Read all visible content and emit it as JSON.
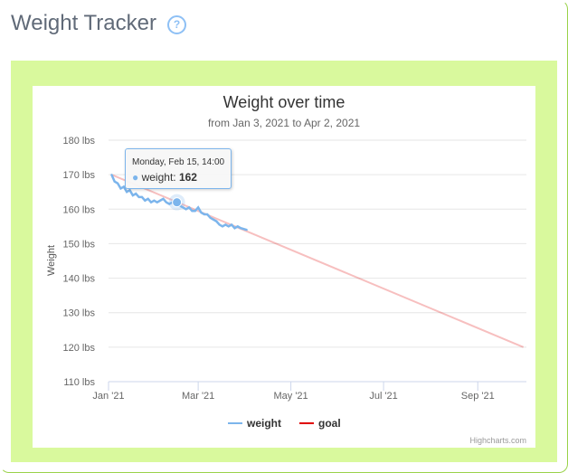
{
  "header": {
    "title": "Weight Tracker",
    "help_icon": "?"
  },
  "tooltip": {
    "date": "Monday, Feb 15, 14:00",
    "series": "weight",
    "value": "162"
  },
  "credits": "Highcharts.com",
  "chart_data": {
    "type": "line",
    "title": "Weight over time",
    "subtitle": "from Jan 3, 2021 to Apr 2, 2021",
    "ylabel": "Weight",
    "ylim": [
      110,
      180
    ],
    "yticks": [
      "110 lbs",
      "120 lbs",
      "130 lbs",
      "140 lbs",
      "150 lbs",
      "160 lbs",
      "170 lbs",
      "180 lbs"
    ],
    "xticks": [
      "Jan '21",
      "Mar '21",
      "May '21",
      "Jul '21",
      "Sep '21"
    ],
    "xtick_days": [
      0,
      59,
      120,
      181,
      243
    ],
    "x_unit": "days since 2021-01-01",
    "legend": {
      "position": "bottom",
      "items": [
        "weight",
        "goal"
      ]
    },
    "colors": {
      "weight": "#7cb5ec",
      "goal": "#e00000"
    },
    "series": [
      {
        "name": "weight",
        "x": [
          2,
          4,
          6,
          8,
          10,
          12,
          14,
          16,
          18,
          20,
          22,
          24,
          26,
          28,
          30,
          32,
          34,
          36,
          38,
          40,
          42,
          44,
          45,
          47,
          49,
          51,
          53,
          55,
          57,
          59,
          61,
          63,
          65,
          67,
          69,
          71,
          73,
          75,
          77,
          79,
          81,
          83,
          85,
          87,
          91
        ],
        "values": [
          170,
          168,
          167.5,
          166,
          166.5,
          165,
          165.5,
          164,
          164.5,
          163.5,
          163.5,
          162.5,
          163,
          162,
          162.5,
          162,
          162.5,
          163,
          162,
          161.5,
          162,
          162,
          162,
          161,
          160.5,
          160,
          160.5,
          159.5,
          159.5,
          160.5,
          159,
          158.5,
          158.5,
          157.5,
          157,
          156.5,
          155.5,
          155,
          155.5,
          155,
          155.5,
          154.5,
          155,
          154.5,
          154
        ]
      },
      {
        "name": "goal",
        "x": [
          2,
          273
        ],
        "values": [
          170,
          120
        ]
      }
    ]
  }
}
